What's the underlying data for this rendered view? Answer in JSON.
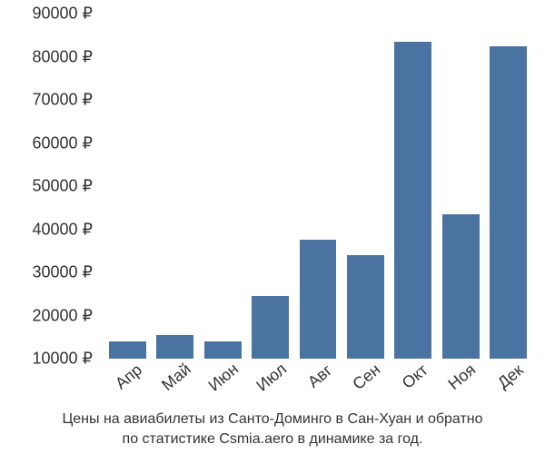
{
  "chart": {
    "type": "bar",
    "categories": [
      "Апр",
      "Май",
      "Июн",
      "Июл",
      "Авг",
      "Сен",
      "Окт",
      "Ноя",
      "Дек"
    ],
    "values": [
      14000,
      15500,
      14000,
      24500,
      37500,
      34000,
      83500,
      43500,
      82500
    ],
    "bar_color": "#4a73a2",
    "bar_width": 0.78,
    "ylim": [
      10000,
      90000
    ],
    "ytick_step": 10000,
    "yticks": [
      10000,
      20000,
      30000,
      40000,
      50000,
      60000,
      70000,
      80000,
      90000
    ],
    "ytick_labels": [
      "10000 ₽",
      "20000 ₽",
      "30000 ₽",
      "40000 ₽",
      "50000 ₽",
      "60000 ₽",
      "70000 ₽",
      "80000 ₽",
      "90000 ₽"
    ],
    "currency_symbol": "₽",
    "background_color": "#ffffff",
    "axis_label_fontsize": 18,
    "axis_label_color": "#333333",
    "xtick_rotation": -40
  },
  "caption": {
    "line1": "Цены на авиабилеты из Санто-Доминго в Сан-Хуан и обратно",
    "line2": "по статистике Csmia.aero в динамике за год.",
    "fontsize": 16,
    "color": "#333333"
  }
}
